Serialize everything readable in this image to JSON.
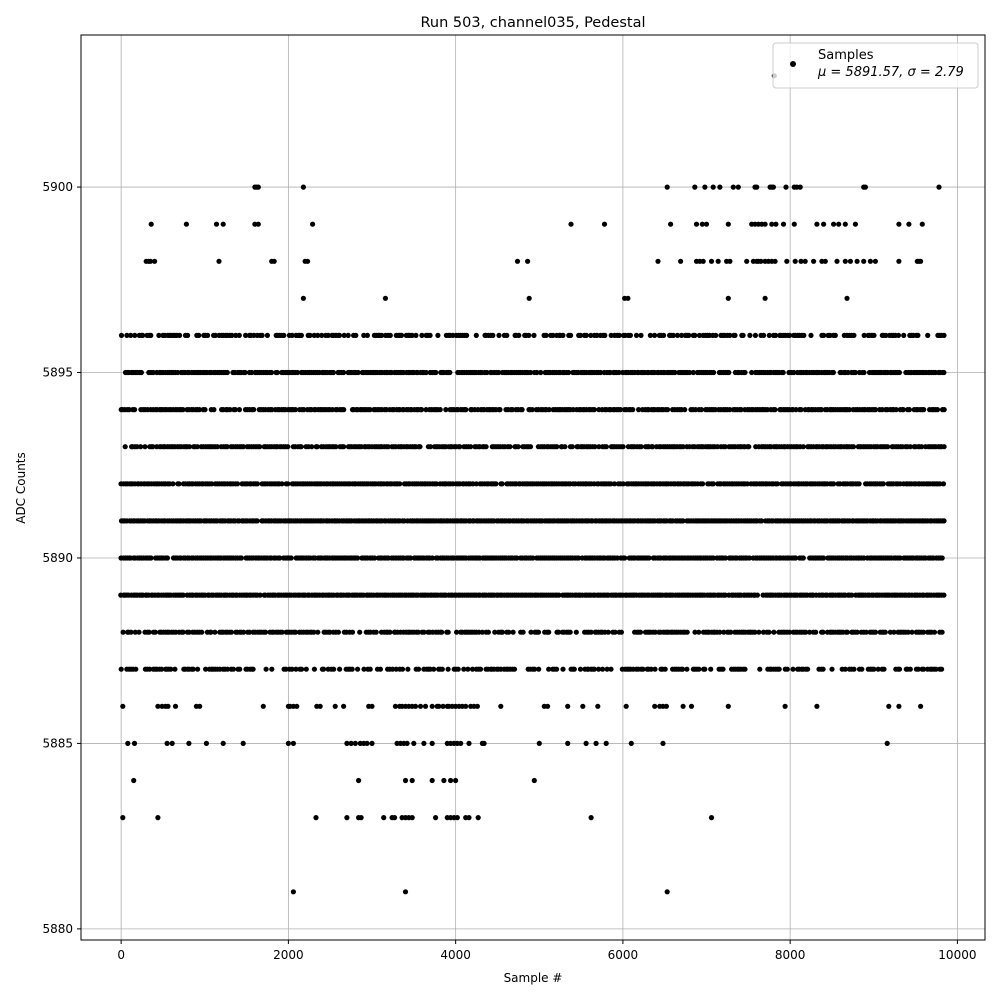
{
  "chart_data": {
    "type": "scatter",
    "title": "Run 503, channel035, Pedestal",
    "xlabel": "Sample #",
    "ylabel": "ADC Counts",
    "xlim": [
      -480,
      10330
    ],
    "ylim": [
      5879.7,
      5904.1
    ],
    "xticks": [
      0,
      2000,
      4000,
      6000,
      8000,
      10000
    ],
    "yticks": [
      5880,
      5885,
      5890,
      5895,
      5900
    ],
    "grid": true,
    "legend": {
      "position": "top-right",
      "series_name": "Samples",
      "stats_text": "μ = 5891.57, σ = 2.79"
    },
    "marker_color": "#000000",
    "series": [
      {
        "name": "Samples",
        "x_range": [
          0,
          9840
        ],
        "level_bands": [
          {
            "y": 5887,
            "x_range": [
              0,
              9840
            ],
            "density": 0.55
          },
          {
            "y": 5888,
            "x_range": [
              0,
              9840
            ],
            "density": 0.7
          },
          {
            "y": 5889,
            "x_range": [
              0,
              9840
            ],
            "density": 0.97
          },
          {
            "y": 5890,
            "x_range": [
              0,
              9840
            ],
            "density": 0.95
          },
          {
            "y": 5891,
            "x_range": [
              0,
              9840
            ],
            "density": 0.99
          },
          {
            "y": 5892,
            "x_range": [
              0,
              9840
            ],
            "density": 0.93
          },
          {
            "y": 5893,
            "x_range": [
              0,
              9840
            ],
            "density": 0.85
          },
          {
            "y": 5894,
            "x_range": [
              0,
              9840
            ],
            "density": 0.83
          },
          {
            "y": 5895,
            "x_range": [
              0,
              9840
            ],
            "density": 0.86
          },
          {
            "y": 5896,
            "x_range": [
              0,
              9840
            ],
            "density": 0.6
          }
        ],
        "sparse_points": [
          {
            "y": 5903,
            "x": [
              7810
            ]
          },
          {
            "y": 5900,
            "x": [
              1600,
              1620,
              1640,
              2180,
              6530,
              6860,
              6980,
              7080,
              7160,
              7320,
              7380,
              7580,
              7600,
              7760,
              7780,
              7800,
              7950,
              8050,
              8080,
              8120,
              8880,
              8900,
              9780
            ]
          },
          {
            "y": 5899,
            "x": [
              360,
              780,
              1140,
              1220,
              1600,
              1640,
              2290,
              5380,
              5780,
              6570,
              6880,
              6950,
              7000,
              7260,
              7540,
              7580,
              7620,
              7660,
              7700,
              7780,
              7830,
              7920,
              8050,
              8320,
              8400,
              8520,
              8580,
              8660,
              8780,
              9300,
              9420,
              9580
            ]
          },
          {
            "y": 5898,
            "x": [
              300,
              330,
              350,
              400,
              1170,
              1800,
              1830,
              2200,
              2230,
              4740,
              4860,
              6420,
              6690,
              6880,
              6920,
              6960,
              7060,
              7140,
              7240,
              7280,
              7480,
              7560,
              7600,
              7620,
              7650,
              7700,
              7740,
              7780,
              7820,
              7960,
              8060,
              8130,
              8180,
              8280,
              8380,
              8420,
              8560,
              8660,
              8720,
              8800,
              8880,
              8960,
              9020,
              9300,
              9520,
              9540,
              9560
            ]
          },
          {
            "y": 5897,
            "x": [
              2180,
              3160,
              4880,
              6020,
              6060,
              7260,
              7700,
              8680
            ]
          },
          {
            "y": 5886,
            "x": [
              20,
              440,
              490,
              530,
              560,
              650,
              900,
              940,
              1700,
              2000,
              2020,
              2060,
              2100,
              2340,
              2380,
              2560,
              2660,
              2960,
              3000,
              3280,
              3330,
              3360,
              3400,
              3440,
              3480,
              3520,
              3580,
              3640,
              3720,
              3780,
              3800,
              3850,
              3900,
              3920,
              3960,
              4000,
              4040,
              4080,
              4120,
              4180,
              4220,
              4260,
              4540,
              5060,
              5100,
              5340,
              5520,
              5700,
              6040,
              6380,
              6440,
              6480,
              6520,
              6720,
              6820,
              7260,
              7940,
              8320,
              9180,
              9300,
              9560
            ]
          },
          {
            "y": 5885,
            "x": [
              80,
              160,
              550,
              610,
              810,
              1020,
              1220,
              1460,
              2000,
              2060,
              2700,
              2750,
              2800,
              2860,
              2900,
              2940,
              3000,
              3300,
              3340,
              3380,
              3420,
              3500,
              3620,
              3720,
              3900,
              3940,
              3980,
              4020,
              4060,
              4160,
              4320,
              4340,
              5000,
              5340,
              5560,
              5680,
              5800,
              6100,
              6480,
              9160
            ]
          },
          {
            "y": 5884,
            "x": [
              150,
              2840,
              3400,
              3480,
              3720,
              3860,
              3940,
              4000,
              4940
            ]
          },
          {
            "y": 5883,
            "x": [
              20,
              440,
              2330,
              2700,
              2840,
              2870,
              3140,
              3240,
              3270,
              3360,
              3400,
              3440,
              3480,
              3760,
              3900,
              3940,
              3980,
              4020,
              4120,
              4160,
              4270,
              5620,
              7060
            ]
          },
          {
            "y": 5881,
            "x": [
              2060,
              3400,
              6530
            ]
          }
        ]
      }
    ]
  }
}
